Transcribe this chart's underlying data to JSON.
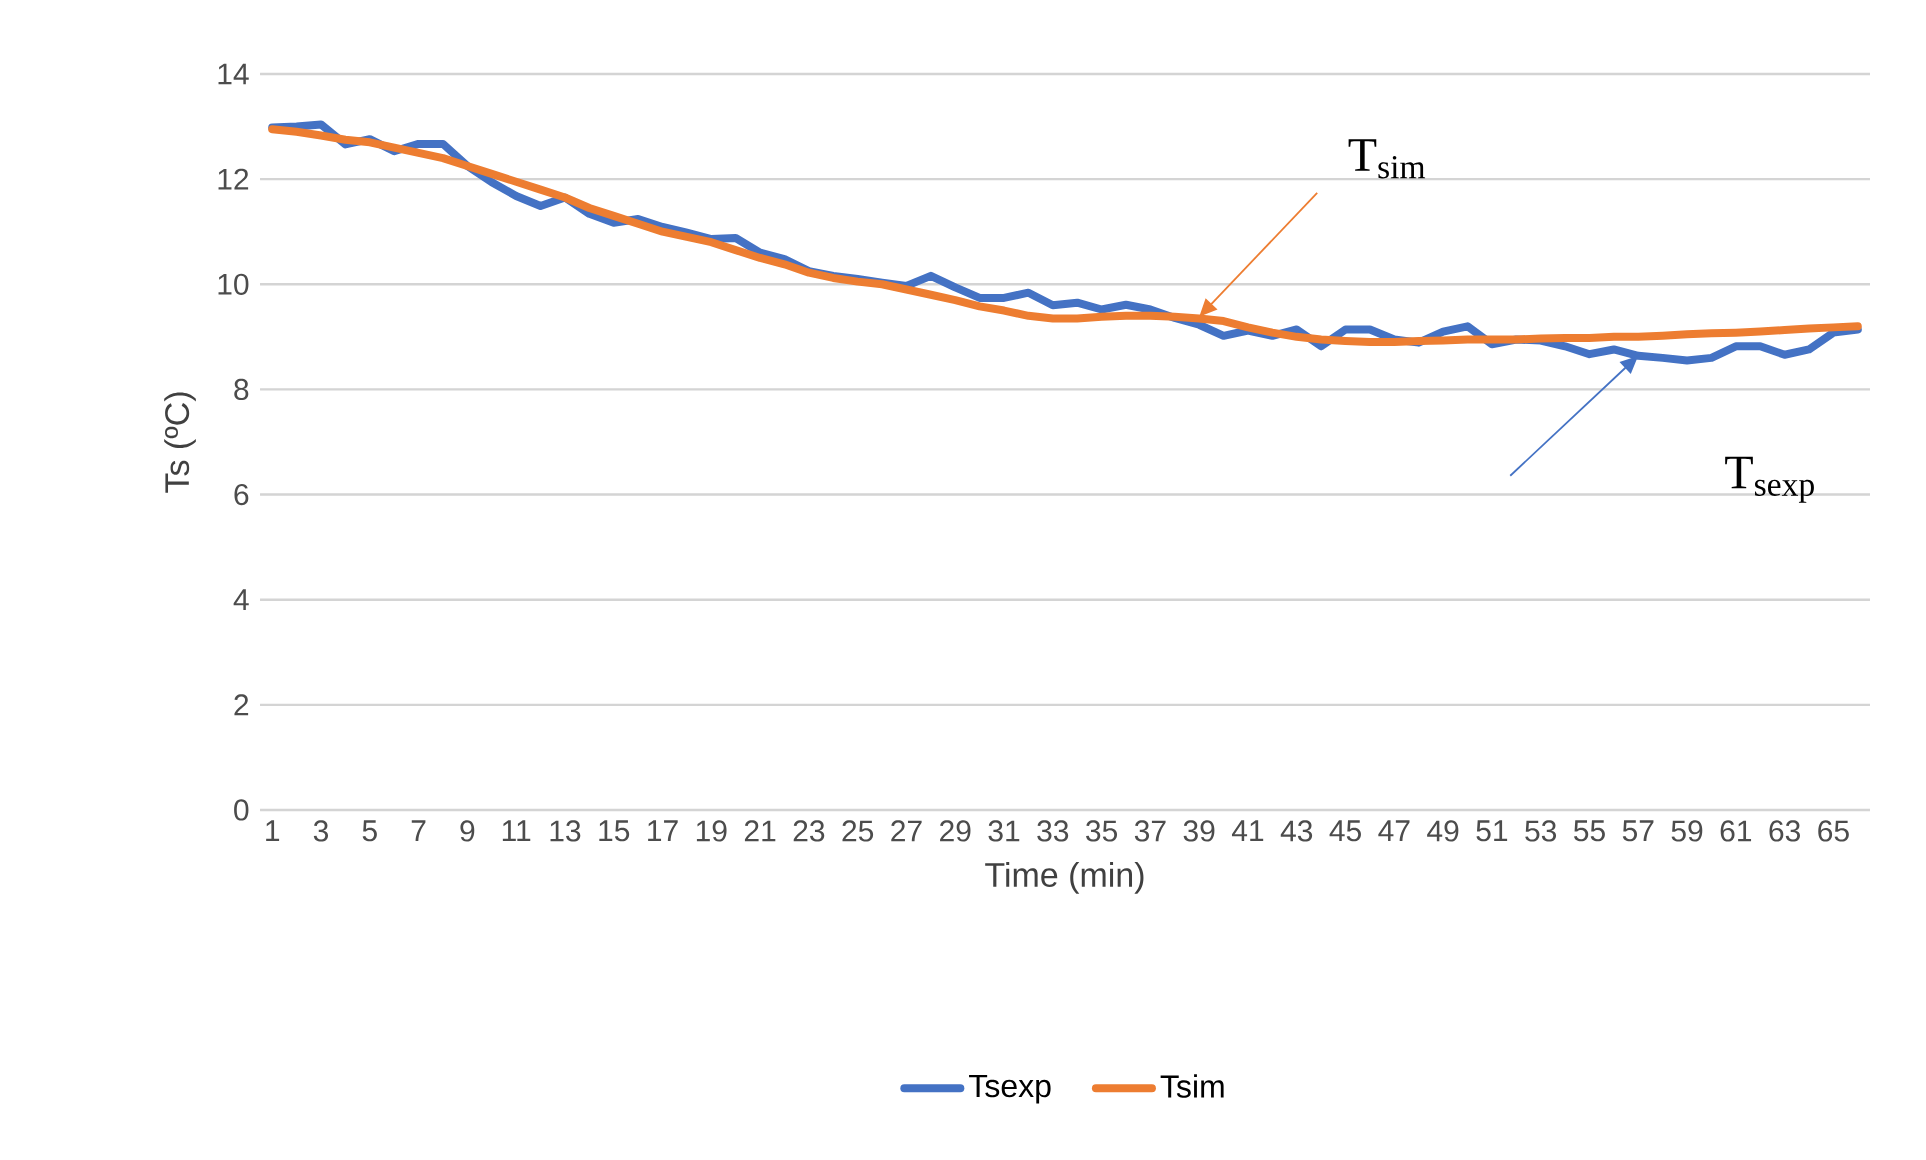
{
  "chart_data": {
    "type": "line",
    "xlabel": "Time (min)",
    "ylabel": "Ts (ºC)",
    "categories": [
      "1",
      null,
      "3",
      null,
      "5",
      null,
      "7",
      null,
      "9",
      null,
      "11",
      null,
      "13",
      null,
      "15",
      null,
      "17",
      null,
      "19",
      null,
      "21",
      null,
      "23",
      null,
      "25",
      null,
      "27",
      null,
      "29",
      null,
      "31",
      null,
      "33",
      null,
      "35",
      null,
      "37",
      null,
      "39",
      null,
      "41",
      null,
      "43",
      null,
      "45",
      null,
      "47",
      null,
      "49",
      null,
      "51",
      null,
      "53",
      null,
      "55",
      null,
      "57",
      null,
      "59",
      null,
      "61",
      null,
      "63",
      null,
      "65",
      null
    ],
    "series": [
      {
        "name": "Tsexp",
        "color": "#4472c4",
        "values": [
          12.98,
          13.0,
          13.04,
          12.66,
          12.76,
          12.53,
          12.67,
          12.67,
          12.25,
          11.94,
          11.68,
          11.49,
          11.65,
          11.34,
          11.17,
          11.24,
          11.09,
          10.98,
          10.86,
          10.88,
          10.6,
          10.48,
          10.25,
          10.16,
          10.1,
          10.03,
          9.97,
          10.16,
          9.94,
          9.74,
          9.74,
          9.84,
          9.6,
          9.65,
          9.52,
          9.61,
          9.52,
          9.36,
          9.23,
          9.02,
          9.12,
          9.02,
          9.14,
          8.82,
          9.14,
          9.14,
          8.95,
          8.89,
          9.1,
          9.2,
          8.86,
          8.95,
          8.93,
          8.82,
          8.67,
          8.76,
          8.64,
          8.6,
          8.55,
          8.6,
          8.82,
          8.82,
          8.66,
          8.76,
          9.08,
          9.14
        ]
      },
      {
        "name": "Tsim",
        "color": "#ed7d31",
        "values": [
          12.95,
          12.9,
          12.83,
          12.75,
          12.7,
          12.6,
          12.5,
          12.4,
          12.25,
          12.1,
          11.95,
          11.8,
          11.65,
          11.45,
          11.3,
          11.15,
          11.0,
          10.9,
          10.8,
          10.65,
          10.5,
          10.38,
          10.22,
          10.12,
          10.05,
          10.0,
          9.9,
          9.8,
          9.7,
          9.58,
          9.5,
          9.4,
          9.35,
          9.35,
          9.38,
          9.4,
          9.4,
          9.38,
          9.35,
          9.3,
          9.18,
          9.08,
          9.0,
          8.95,
          8.92,
          8.9,
          8.9,
          8.92,
          8.93,
          8.95,
          8.95,
          8.95,
          8.97,
          8.98,
          8.98,
          9.0,
          9.0,
          9.02,
          9.05,
          9.07,
          9.08,
          9.1,
          9.13,
          9.16,
          9.18,
          9.2
        ]
      }
    ],
    "ylim": [
      0,
      14
    ],
    "yticks": [
      0,
      2,
      4,
      6,
      8,
      10,
      12,
      14
    ],
    "grid": "y",
    "legend": "bottom",
    "marker": "none",
    "line_style": "solid",
    "annotations": [
      {
        "text": "T$_{sim}$",
        "x": "39",
        "y": 9.38
      },
      {
        "text": "T$_{sexp}$",
        "x": "57",
        "y": 8.64
      }
    ]
  }
}
